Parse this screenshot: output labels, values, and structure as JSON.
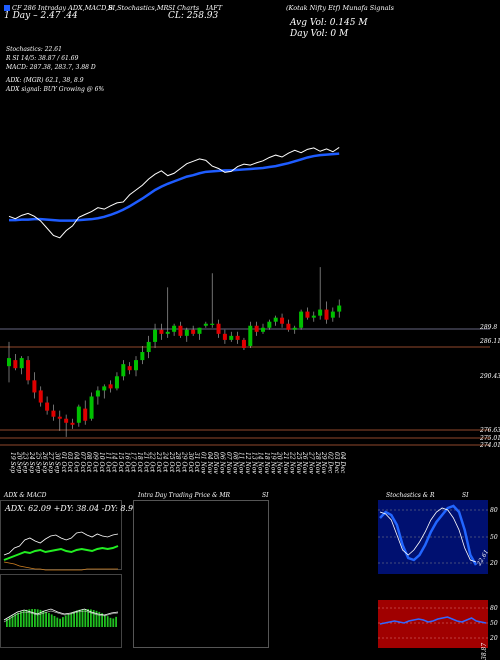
{
  "header": {
    "top_left": "CF 286 Intraday ADX,MACD,B",
    "top_mid1": "SI,Stochastics,MR",
    "top_mid2": "SI Charts",
    "top_mid3": "IAFT",
    "top_right": "(Kotak Nifty Etf) Munafa Signals",
    "cl_label": "CL: 258.93",
    "day_line": "1 Day – 2.47 .44",
    "avg_vol": "Avg Vol: 0.145 M",
    "day_vol": "Day Vol: 0   M"
  },
  "indicators": {
    "stoch": "Stochastics: 22.61",
    "rsi": "R                SI 14/5: 38.87 / 61.69",
    "macd": "MACD: 287.38, 283.7, 3.88  D",
    "adx": "ADX:                       (MGR) 62.1, 38, 8.9",
    "adx_signal": "ADX  signal:                                       BUY Growing @ 6%"
  },
  "price_levels": [
    "289.8",
    "286.11",
    "290.43",
    "276.63",
    "275.01",
    "274.01"
  ],
  "dates": [
    "19 Sep",
    "20 Sep",
    "23 Sep",
    "24 Sep",
    "25 Sep",
    "26 Sep",
    "27 Sep",
    "30 Sep",
    "01 Oct",
    "03 Oct",
    "04 Oct",
    "07 Oct",
    "08 Oct",
    "09 Oct",
    "10 Oct",
    "11 Oct",
    "14 Oct",
    "15 Oct",
    "16 Oct",
    "17 Oct",
    "18 Oct",
    "21 Oct",
    "22 Oct",
    "23 Oct",
    "24 Oct",
    "25 Oct",
    "28 Oct",
    "29 Oct",
    "30 Oct",
    "31 Oct",
    "01 Nov",
    "04 Nov",
    "05 Nov",
    "06 Nov",
    "07 Nov",
    "08 Nov",
    "11 Nov",
    "12 Nov",
    "13 Nov",
    "14 Nov",
    "18 Nov",
    "19 Nov",
    "20 Nov",
    "21 Nov",
    "22 Nov",
    "25 Nov",
    "26 Nov",
    "27 Nov",
    "28 Nov",
    "29 Nov",
    "02 Dec",
    "03 Dec",
    "04 Dec"
  ],
  "panels": {
    "adx_title": "ADX  & MACD",
    "adx_readout": "ADX: 62.09  +DY: 38.04  -DY: 8.9",
    "intraday_title": "Intra  Day Trading Price  & MR",
    "intraday_si": "SI",
    "stoch_title": "Stochastics & R",
    "stoch_si": "SI",
    "stoch_ticks": [
      "80",
      "50",
      "20"
    ],
    "stoch_value": "22.61",
    "rsi_ticks": [
      "80",
      "50",
      "20"
    ],
    "rsi_value": "38.87"
  },
  "colors": {
    "bull": "#00c000",
    "bear": "#e00000",
    "ma": "#1e5cff",
    "price": "#ffffff",
    "level": "#c0603a",
    "rsi_bg": "#a00000"
  },
  "chart_data": {
    "type": "candlestick",
    "title": "",
    "candles": [
      {
        "o": 290.5,
        "h": 296.5,
        "l": 286.5,
        "c": 292.5
      },
      {
        "o": 292.0,
        "h": 293.5,
        "l": 289.5,
        "c": 290.0
      },
      {
        "o": 290.0,
        "h": 293.0,
        "l": 288.5,
        "c": 292.5
      },
      {
        "o": 292.0,
        "h": 293.0,
        "l": 286.0,
        "c": 287.0
      },
      {
        "o": 287.0,
        "h": 289.0,
        "l": 282.5,
        "c": 284.0
      },
      {
        "o": 284.5,
        "h": 285.5,
        "l": 280.5,
        "c": 281.5
      },
      {
        "o": 281.5,
        "h": 283.0,
        "l": 278.5,
        "c": 279.5
      },
      {
        "o": 279.5,
        "h": 281.0,
        "l": 277.0,
        "c": 278.0
      },
      {
        "o": 278.0,
        "h": 279.5,
        "l": 274.5,
        "c": 277.5
      },
      {
        "o": 277.5,
        "h": 278.5,
        "l": 273.0,
        "c": 276.5
      },
      {
        "o": 276.5,
        "h": 277.5,
        "l": 275.0,
        "c": 276.0
      },
      {
        "o": 276.5,
        "h": 281.0,
        "l": 275.5,
        "c": 280.5
      },
      {
        "o": 280.0,
        "h": 282.0,
        "l": 276.0,
        "c": 277.0
      },
      {
        "o": 277.5,
        "h": 284.0,
        "l": 277.0,
        "c": 283.0
      },
      {
        "o": 283.0,
        "h": 285.5,
        "l": 281.0,
        "c": 284.5
      },
      {
        "o": 284.5,
        "h": 286.0,
        "l": 282.5,
        "c": 285.5
      },
      {
        "o": 286.0,
        "h": 287.0,
        "l": 284.0,
        "c": 285.0
      },
      {
        "o": 285.0,
        "h": 289.0,
        "l": 284.5,
        "c": 288.0
      },
      {
        "o": 288.0,
        "h": 292.0,
        "l": 287.0,
        "c": 291.0
      },
      {
        "o": 290.5,
        "h": 291.5,
        "l": 288.5,
        "c": 289.5
      },
      {
        "o": 289.5,
        "h": 293.0,
        "l": 288.0,
        "c": 292.0
      },
      {
        "o": 292.0,
        "h": 295.5,
        "l": 291.0,
        "c": 294.0
      },
      {
        "o": 294.0,
        "h": 298.0,
        "l": 292.5,
        "c": 296.5
      },
      {
        "o": 296.5,
        "h": 301.0,
        "l": 295.0,
        "c": 299.5
      },
      {
        "o": 299.5,
        "h": 301.0,
        "l": 297.0,
        "c": 298.5
      },
      {
        "o": 298.5,
        "h": 310.0,
        "l": 297.5,
        "c": 299.0
      },
      {
        "o": 299.0,
        "h": 301.0,
        "l": 298.0,
        "c": 300.5
      },
      {
        "o": 300.5,
        "h": 301.5,
        "l": 297.5,
        "c": 298.0
      },
      {
        "o": 298.0,
        "h": 300.0,
        "l": 296.5,
        "c": 299.5
      },
      {
        "o": 299.5,
        "h": 300.5,
        "l": 298.0,
        "c": 298.5
      },
      {
        "o": 298.5,
        "h": 300.0,
        "l": 297.0,
        "c": 300.0
      },
      {
        "o": 300.5,
        "h": 301.5,
        "l": 300.0,
        "c": 301.0
      },
      {
        "o": 301.0,
        "h": 313.5,
        "l": 300.0,
        "c": 301.0
      },
      {
        "o": 301.0,
        "h": 302.0,
        "l": 297.5,
        "c": 298.5
      },
      {
        "o": 298.5,
        "h": 299.5,
        "l": 296.0,
        "c": 297.0
      },
      {
        "o": 297.0,
        "h": 299.0,
        "l": 296.5,
        "c": 298.0
      },
      {
        "o": 298.0,
        "h": 299.0,
        "l": 296.0,
        "c": 297.0
      },
      {
        "o": 297.0,
        "h": 297.5,
        "l": 294.5,
        "c": 295.0
      },
      {
        "o": 295.5,
        "h": 301.5,
        "l": 295.0,
        "c": 300.5
      },
      {
        "o": 300.5,
        "h": 301.5,
        "l": 298.0,
        "c": 299.0
      },
      {
        "o": 299.0,
        "h": 301.0,
        "l": 298.5,
        "c": 300.0
      },
      {
        "o": 300.0,
        "h": 302.0,
        "l": 299.5,
        "c": 301.5
      },
      {
        "o": 301.5,
        "h": 303.0,
        "l": 300.5,
        "c": 302.5
      },
      {
        "o": 302.5,
        "h": 303.5,
        "l": 300.0,
        "c": 301.0
      },
      {
        "o": 301.0,
        "h": 302.0,
        "l": 299.0,
        "c": 299.5
      },
      {
        "o": 299.5,
        "h": 300.5,
        "l": 298.5,
        "c": 300.0
      },
      {
        "o": 300.0,
        "h": 304.5,
        "l": 299.5,
        "c": 304.0
      },
      {
        "o": 304.0,
        "h": 305.0,
        "l": 302.0,
        "c": 302.5
      },
      {
        "o": 302.5,
        "h": 304.0,
        "l": 301.5,
        "c": 303.0
      },
      {
        "o": 303.0,
        "h": 315.0,
        "l": 302.0,
        "c": 304.5
      },
      {
        "o": 304.5,
        "h": 306.5,
        "l": 301.0,
        "c": 302.0
      },
      {
        "o": 302.5,
        "h": 305.0,
        "l": 301.5,
        "c": 304.0
      },
      {
        "o": 304.0,
        "h": 307.0,
        "l": 302.5,
        "c": 305.5
      }
    ],
    "price_line": [
      298,
      297.5,
      298.2,
      298.6,
      298,
      297,
      295.5,
      294,
      293.5,
      295,
      296,
      297.8,
      298.4,
      299,
      299.8,
      299.5,
      300.2,
      300.8,
      301,
      302.5,
      303.5,
      304.5,
      305.8,
      306.8,
      307.5,
      306.5,
      307,
      308,
      309,
      309.5,
      310,
      309.7,
      308.5,
      308,
      307.2,
      307.4,
      308.4,
      308.9,
      308.7,
      309.2,
      309.6,
      310.3,
      310.8,
      310.4,
      311.2,
      311.8,
      311.3,
      312,
      312.3,
      311.6,
      312.1,
      311.5,
      312.4
    ],
    "ma_line": [
      297.2,
      297.2,
      297.3,
      297.3,
      297.4,
      297.4,
      297.3,
      297.2,
      297.1,
      297.1,
      297.1,
      297.2,
      297.3,
      297.4,
      297.6,
      297.9,
      298.3,
      298.8,
      299.4,
      300.1,
      300.9,
      301.7,
      302.6,
      303.5,
      304.2,
      304.8,
      305.3,
      305.8,
      306.3,
      306.6,
      307,
      307.3,
      307.4,
      307.5,
      307.6,
      307.6,
      307.7,
      307.8,
      307.9,
      308,
      308.1,
      308.3,
      308.5,
      308.8,
      309.1,
      309.5,
      309.9,
      310.3,
      310.6,
      310.8,
      310.9,
      311,
      311.1
    ],
    "ylim": [
      271,
      318
    ]
  }
}
